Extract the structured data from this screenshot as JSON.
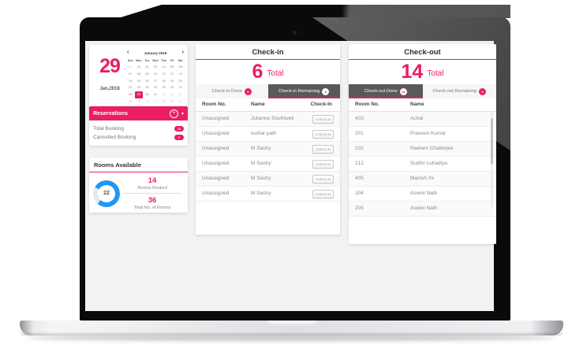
{
  "colors": {
    "accent": "#e91e63",
    "tab_active_bg": "#59595c",
    "donut_blue": "#2196f3",
    "donut_track": "#e6e8ea"
  },
  "icons": {
    "plus": "+",
    "chevron_down": "▾",
    "prev": "‹",
    "next": "›"
  },
  "calendar": {
    "big_day": "29",
    "date_label": "Jan,2018",
    "month_label": "January 2018",
    "day_headers": [
      "Sun",
      "Mon",
      "Tue",
      "Wed",
      "Thu",
      "Fri",
      "Sat"
    ],
    "weeks": [
      [
        {
          "t": "31",
          "m": true
        },
        {
          "t": "01"
        },
        {
          "t": "02"
        },
        {
          "t": "03"
        },
        {
          "t": "04"
        },
        {
          "t": "05"
        },
        {
          "t": "06"
        }
      ],
      [
        {
          "t": "07"
        },
        {
          "t": "08"
        },
        {
          "t": "09"
        },
        {
          "t": "10"
        },
        {
          "t": "11"
        },
        {
          "t": "12"
        },
        {
          "t": "13"
        }
      ],
      [
        {
          "t": "14"
        },
        {
          "t": "15"
        },
        {
          "t": "16"
        },
        {
          "t": "17"
        },
        {
          "t": "18"
        },
        {
          "t": "19"
        },
        {
          "t": "20"
        }
      ],
      [
        {
          "t": "21"
        },
        {
          "t": "22"
        },
        {
          "t": "23"
        },
        {
          "t": "24"
        },
        {
          "t": "25"
        },
        {
          "t": "26"
        },
        {
          "t": "27"
        }
      ],
      [
        {
          "t": "28"
        },
        {
          "t": "29",
          "sel": true
        },
        {
          "t": "30"
        },
        {
          "t": "31"
        },
        {
          "t": "01",
          "m": true
        },
        {
          "t": "02",
          "m": true
        },
        {
          "t": "03",
          "m": true
        }
      ],
      [
        {
          "t": "04",
          "m": true
        },
        {
          "t": "05",
          "m": true
        },
        {
          "t": "06",
          "m": true
        },
        {
          "t": "07",
          "m": true
        },
        {
          "t": "08",
          "m": true
        },
        {
          "t": "09",
          "m": true
        },
        {
          "t": "10",
          "m": true
        }
      ]
    ]
  },
  "reservations": {
    "title": "Reservations",
    "rows": [
      {
        "label": "Total Booking",
        "badge": "14"
      },
      {
        "label": "Cancelled Booking",
        "badge": "0"
      }
    ]
  },
  "rooms": {
    "title": "Rooms Available",
    "donut_center": "22",
    "stats": [
      {
        "value": "14",
        "label": "Rooms Booked"
      },
      {
        "value": "36",
        "label": "Total No. of Rooms"
      }
    ],
    "chart": {
      "type": "pie",
      "labels": [
        "Rooms Booked",
        "Rooms Available"
      ],
      "values": [
        14,
        22
      ],
      "total_rooms": 36
    }
  },
  "checkin": {
    "title": "Check-in",
    "total": "6",
    "total_label": "Total",
    "tabs": [
      {
        "label": "Check-in Done",
        "badge": "0",
        "active": false
      },
      {
        "label": "Check-in Remaining",
        "badge": "6",
        "active": true
      }
    ],
    "columns": [
      "Room No.",
      "Name",
      "Check-In"
    ],
    "button_label": "CHECK IN",
    "rows": [
      {
        "room": "Unassigned",
        "name": "Julianne Southwell"
      },
      {
        "room": "Unassigned",
        "name": "tushar patil"
      },
      {
        "room": "Unassigned",
        "name": "M Sastry"
      },
      {
        "room": "Unassigned",
        "name": "M Sastry"
      },
      {
        "room": "Unassigned",
        "name": "M Sastry"
      },
      {
        "room": "Unassigned",
        "name": "M Sastry"
      }
    ]
  },
  "checkout": {
    "title": "Check-out",
    "total": "14",
    "total_label": "Total",
    "tabs": [
      {
        "label": "Check-out Done",
        "badge": "14",
        "active": true
      },
      {
        "label": "Check-out Remaining",
        "badge": "0",
        "active": false
      }
    ],
    "columns": [
      "Room No.",
      "Name"
    ],
    "rows": [
      {
        "room": "403",
        "name": "Achal"
      },
      {
        "room": "201",
        "name": "Praveen Kumar"
      },
      {
        "room": "102",
        "name": "Reetam Chatterjee"
      },
      {
        "room": "212",
        "name": "Sudhir Luhadiya"
      },
      {
        "room": "405",
        "name": "Manish Xx"
      },
      {
        "room": "204",
        "name": "Aswini Nath"
      },
      {
        "room": "205",
        "name": "Aswini Nath"
      }
    ]
  }
}
